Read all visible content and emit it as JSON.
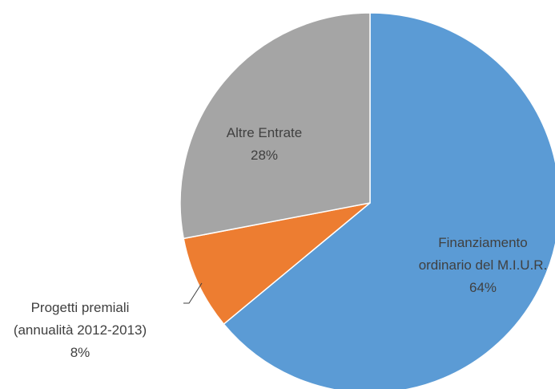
{
  "chart_data": {
    "type": "pie",
    "categories": [
      "Finanziamento ordinario del M.I.U.R.",
      "Progetti premiali (annualità 2012-2013)",
      "Altre Entrate"
    ],
    "values": [
      64,
      8,
      28
    ],
    "value_labels": [
      "64%",
      "8%",
      "28%"
    ],
    "colors": [
      "#5b9bd5",
      "#ed7d31",
      "#a5a5a5"
    ]
  }
}
